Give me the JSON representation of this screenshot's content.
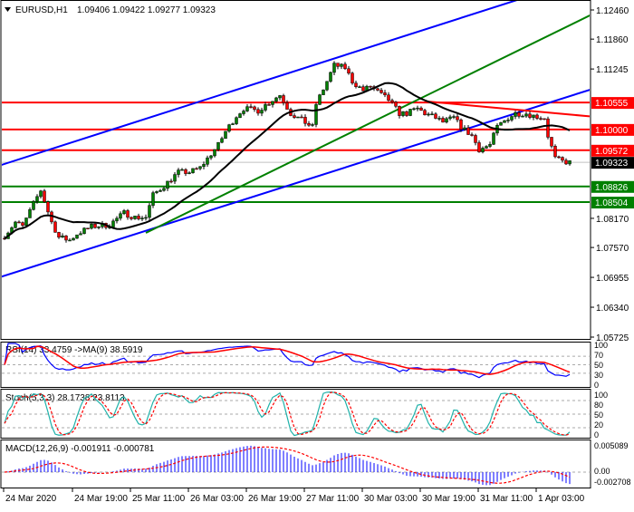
{
  "header": {
    "symbol": "EURUSD,H1",
    "ohlc": "1.09406 1.09422 1.09277 1.09323"
  },
  "colors": {
    "bull": "#008000",
    "bear": "#ff0000",
    "channel": "#0000ff",
    "trend": "#008000",
    "resistance": "#ff0000",
    "support": "#008000",
    "ma": "#000000",
    "rsi": "#0000ff",
    "rsi_ma": "#ff0000",
    "stoch_k": "#20b2aa",
    "stoch_d": "#ff0000",
    "macd_hist": "#0000ff",
    "macd_signal": "#ff0000"
  },
  "chart_data": [
    {
      "type": "candlestick",
      "title": "EURUSD,H1",
      "price_axis_ticks": [
        "1.12460",
        "1.11860",
        "1.11245",
        "1.08170",
        "1.07570",
        "1.06955",
        "1.06340",
        "1.05725"
      ],
      "time_axis_ticks": [
        "24 Mar 2020",
        "24 Mar 19:00",
        "25 Mar 11:00",
        "26 Mar 03:00",
        "26 Mar 19:00",
        "27 Mar 11:00",
        "30 Mar 03:00",
        "30 Mar 19:00",
        "31 Mar 11:00",
        "1 Apr 03:00"
      ],
      "ylim": [
        1.05725,
        1.1246
      ],
      "close_path": [
        [
          "24 Mar 00:00",
          1.0781
        ],
        [
          "24 Mar 03:00",
          1.0809
        ],
        [
          "24 Mar 05:00",
          1.08
        ],
        [
          "24 Mar 08:00",
          1.0847
        ],
        [
          "24 Mar 10:00",
          1.0875
        ],
        [
          "24 Mar 13:00",
          1.0809
        ],
        [
          "24 Mar 15:00",
          1.0778
        ],
        [
          "24 Mar 18:00",
          1.0772
        ],
        [
          "24 Mar 20:00",
          1.0785
        ],
        [
          "25 Mar 00:00",
          1.08
        ],
        [
          "25 Mar 05:00",
          1.0804
        ],
        [
          "25 Mar 09:00",
          1.0828
        ],
        [
          "25 Mar 12:00",
          1.0819
        ],
        [
          "25 Mar 15:00",
          1.0819
        ],
        [
          "25 Mar 17:00",
          1.0865
        ],
        [
          "25 Mar 20:00",
          1.0884
        ],
        [
          "26 Mar 00:00",
          1.0912
        ],
        [
          "26 Mar 03:00",
          1.0912
        ],
        [
          "26 Mar 06:00",
          1.0921
        ],
        [
          "26 Mar 08:00",
          1.094
        ],
        [
          "26 Mar 11:00",
          1.0968
        ],
        [
          "26 Mar 13:00",
          1.0996
        ],
        [
          "26 Mar 16:00",
          1.1028
        ],
        [
          "26 Mar 18:00",
          1.1043
        ],
        [
          "26 Mar 22:00",
          1.1039
        ],
        [
          "27 Mar 02:00",
          1.1061
        ],
        [
          "27 Mar 04:00",
          1.1071
        ],
        [
          "27 Mar 07:00",
          1.1033
        ],
        [
          "27 Mar 09:00",
          1.1024
        ],
        [
          "27 Mar 13:00",
          1.1005
        ],
        [
          "27 Mar 14:00",
          1.1052
        ],
        [
          "27 Mar 17:00",
          1.1099
        ],
        [
          "27 Mar 19:00",
          1.1132
        ],
        [
          "27 Mar 22:00",
          1.1127
        ],
        [
          "30 Mar 00:00",
          1.1099
        ],
        [
          "30 Mar 03:00",
          1.108
        ],
        [
          "30 Mar 05:00",
          1.1089
        ],
        [
          "30 Mar 08:00",
          1.1071
        ],
        [
          "30 Mar 10:00",
          1.1061
        ],
        [
          "30 Mar 13:00",
          1.1033
        ],
        [
          "30 Mar 15:00",
          1.1033
        ],
        [
          "30 Mar 18:00",
          1.1043
        ],
        [
          "30 Mar 20:00",
          1.1033
        ],
        [
          "30 Mar 23:00",
          1.1024
        ],
        [
          "31 Mar 01:00",
          1.1015
        ],
        [
          "31 Mar 04:00",
          1.1024
        ],
        [
          "31 Mar 06:00",
          1.1005
        ],
        [
          "31 Mar 09:00",
          1.0987
        ],
        [
          "31 Mar 11:00",
          1.0959
        ],
        [
          "31 Mar 14:00",
          1.0968
        ],
        [
          "31 Mar 15:00",
          1.0987
        ],
        [
          "31 Mar 16:00",
          1.1005
        ],
        [
          "31 Mar 19:00",
          1.1024
        ],
        [
          "31 Mar 21:00",
          1.1033
        ],
        [
          "1 Apr 00:00",
          1.1033
        ],
        [
          "1 Apr 02:00",
          1.1028
        ],
        [
          "1 Apr 05:00",
          1.1024
        ],
        [
          "1 Apr 06:00",
          1.0987
        ],
        [
          "1 Apr 08:00",
          1.094
        ],
        [
          "1 Apr 10:00",
          1.0934
        ],
        [
          "1 Apr 12:00",
          1.0932
        ]
      ],
      "horizontal_levels": [
        {
          "price": 1.10555,
          "label": "1.10555",
          "kind": "resistance"
        },
        {
          "price": 1.1,
          "label": "1.10000",
          "kind": "resistance"
        },
        {
          "price": 1.09572,
          "label": "1.09572",
          "kind": "resistance"
        },
        {
          "price": 1.08826,
          "label": "1.08826",
          "kind": "support"
        },
        {
          "price": 1.08504,
          "label": "1.08504",
          "kind": "support"
        }
      ],
      "current_price": {
        "price": 1.09323,
        "label": "1.09323"
      },
      "trend_lines": [
        {
          "kind": "channel",
          "points": [
            [
              "24 Mar 00:00",
              1.0929
            ],
            [
              "31 Mar 20:00",
              1.1263
            ]
          ]
        },
        {
          "kind": "channel",
          "points": [
            [
              "24 Mar 00:00",
              1.0699
            ],
            [
              "1 Apr 16:00",
              1.1078
            ]
          ]
        },
        {
          "kind": "trend",
          "points": [
            [
              "25 Mar 15:00",
              1.0787
            ],
            [
              "1 Apr 16:00",
              1.1229
            ]
          ],
          "start_at_first_point": true
        },
        {
          "kind": "resistance",
          "points": [
            [
              "30 Mar 20:00",
              1.1058
            ],
            [
              "1 Apr 16:00",
              1.1028
            ]
          ],
          "start_at_first_point": true
        }
      ]
    },
    {
      "type": "line",
      "title": "RSI(14) 33.4759  ->MA(9) 38.5919",
      "ylim": [
        0,
        100
      ],
      "levels": [
        70,
        50,
        30
      ],
      "tick_labels": [
        "100",
        "70",
        "50",
        "30",
        "0"
      ]
    },
    {
      "type": "line",
      "title": "Stoch(5,3,3) 28.1738 23.8113",
      "ylim": [
        0,
        100
      ],
      "levels": [
        80,
        50,
        20
      ],
      "tick_labels": [
        "100",
        "80",
        "50",
        "20",
        "0"
      ]
    },
    {
      "type": "bar",
      "title": "MACD(12,26,9) -0.001911 -0.000781",
      "tick_labels": [
        "0.005089",
        "0.00",
        "-0.002708"
      ]
    }
  ]
}
